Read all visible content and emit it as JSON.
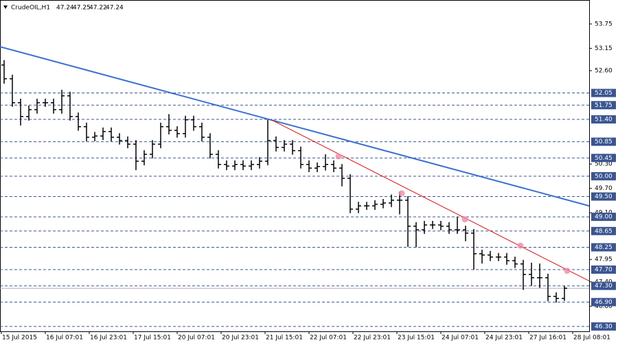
{
  "chart_data": {
    "type": "ohlc",
    "symbol": "CrudeOIL,H1",
    "quote": [
      "47.24",
      "47.25",
      "47.22",
      "47.24"
    ],
    "color": "#000000",
    "x": [
      1,
      4,
      7,
      10,
      13,
      16,
      19,
      22,
      25,
      28,
      31,
      34,
      37,
      40,
      43,
      46,
      49,
      52,
      55,
      58,
      61,
      64,
      67,
      70,
      73,
      76,
      79,
      82,
      85,
      88,
      91,
      94,
      97,
      100,
      103,
      106,
      109,
      112,
      115,
      118,
      121,
      124,
      127,
      130,
      133,
      136,
      139,
      142,
      145,
      148,
      151,
      154,
      157,
      160,
      163,
      166,
      169,
      172,
      175,
      178,
      181,
      184,
      187,
      190,
      193,
      196,
      199,
      202,
      205
    ],
    "open": [
      52.74,
      52.4,
      51.81,
      51.47,
      51.64,
      51.81,
      51.81,
      51.64,
      51.98,
      51.47,
      51.22,
      50.96,
      50.99,
      51.1,
      50.96,
      50.88,
      50.79,
      50.37,
      50.54,
      50.79,
      51.22,
      51.13,
      51.05,
      51.39,
      51.22,
      50.96,
      50.54,
      50.29,
      50.25,
      50.29,
      50.25,
      50.29,
      50.37,
      50.88,
      50.71,
      50.79,
      50.63,
      50.29,
      50.2,
      50.24,
      50.29,
      50.2,
      49.95,
      49.19,
      49.27,
      49.27,
      49.31,
      49.34,
      49.41,
      49.41,
      48.77,
      48.68,
      48.8,
      48.8,
      48.77,
      48.68,
      48.68,
      48.6,
      48.09,
      48.06,
      48.01,
      48.01,
      47.92,
      47.84,
      47.58,
      47.5,
      47.5,
      47.04,
      46.99
    ],
    "high": [
      52.86,
      52.5,
      51.91,
      51.74,
      51.91,
      51.91,
      51.91,
      52.13,
      52.08,
      51.57,
      51.32,
      51.09,
      51.2,
      51.2,
      51.06,
      50.98,
      50.89,
      50.64,
      50.89,
      51.32,
      51.53,
      51.23,
      51.49,
      51.49,
      51.32,
      51.06,
      50.64,
      50.39,
      50.39,
      50.39,
      50.39,
      50.47,
      51.39,
      50.98,
      50.89,
      50.89,
      50.73,
      50.39,
      50.34,
      50.54,
      50.39,
      50.3,
      50.05,
      49.37,
      49.37,
      49.41,
      49.44,
      49.55,
      49.62,
      49.51,
      48.87,
      48.9,
      48.9,
      48.9,
      48.87,
      49.0,
      48.78,
      48.7,
      48.19,
      48.16,
      48.11,
      48.11,
      48.02,
      47.94,
      47.87,
      47.85,
      47.6,
      47.14,
      47.3
    ],
    "low": [
      52.28,
      51.71,
      51.25,
      51.37,
      51.54,
      51.71,
      51.54,
      51.54,
      51.37,
      51.12,
      50.86,
      50.86,
      50.89,
      50.86,
      50.78,
      50.69,
      50.15,
      50.27,
      50.44,
      50.69,
      51.03,
      50.95,
      50.95,
      51.12,
      50.86,
      50.44,
      50.19,
      50.15,
      50.15,
      50.15,
      50.15,
      50.19,
      50.27,
      50.61,
      50.61,
      50.53,
      50.19,
      50.1,
      50.1,
      50.14,
      50.1,
      49.75,
      49.09,
      49.09,
      49.17,
      49.17,
      49.21,
      49.24,
      49.06,
      48.26,
      48.25,
      48.58,
      48.7,
      48.67,
      48.58,
      48.58,
      48.4,
      47.7,
      47.85,
      47.91,
      47.91,
      47.82,
      47.74,
      47.2,
      47.3,
      47.25,
      46.92,
      46.89,
      46.93
    ],
    "close": [
      52.4,
      51.81,
      51.47,
      51.64,
      51.81,
      51.81,
      51.64,
      51.98,
      51.47,
      51.22,
      50.96,
      50.99,
      51.1,
      50.96,
      50.88,
      50.79,
      50.37,
      50.54,
      50.79,
      51.22,
      51.13,
      51.05,
      51.39,
      51.22,
      50.96,
      50.54,
      50.29,
      50.25,
      50.29,
      50.25,
      50.29,
      50.37,
      50.88,
      50.71,
      50.79,
      50.63,
      50.29,
      50.2,
      50.24,
      50.29,
      50.2,
      49.95,
      49.19,
      49.27,
      49.27,
      49.31,
      49.34,
      49.41,
      49.41,
      48.77,
      48.68,
      48.8,
      48.8,
      48.77,
      48.68,
      48.68,
      48.6,
      48.09,
      48.06,
      48.01,
      48.01,
      47.92,
      47.84,
      47.58,
      47.5,
      47.5,
      47.04,
      46.99,
      47.24
    ],
    "xlim": [
      -0.5,
      214
    ],
    "ylim": [
      46.18,
      54.34
    ],
    "xticks": [
      {
        "value": 0,
        "label": "15 Jul 2015"
      },
      {
        "value": 16,
        "label": "16 Jul 07:01"
      },
      {
        "value": 32,
        "label": "16 Jul 23:01"
      },
      {
        "value": 48,
        "label": "17 Jul 15:01"
      },
      {
        "value": 64,
        "label": "20 Jul 07:01"
      },
      {
        "value": 80,
        "label": "20 Jul 23:01"
      },
      {
        "value": 96,
        "label": "21 Jul 15:01"
      },
      {
        "value": 112,
        "label": "22 Jul 07:01"
      },
      {
        "value": 128,
        "label": "22 Jul 23:01"
      },
      {
        "value": 144,
        "label": "23 Jul 15:01"
      },
      {
        "value": 160,
        "label": "24 Jul 07:01"
      },
      {
        "value": 176,
        "label": "24 Jul 23:01"
      },
      {
        "value": 192,
        "label": "27 Jul 16:01"
      },
      {
        "value": 208,
        "label": "28 Jul 08:01"
      }
    ],
    "yticks": [
      {
        "value": 53.75,
        "label": "53.75"
      },
      {
        "value": 53.15,
        "label": "53.15"
      },
      {
        "value": 52.6,
        "label": "52.60"
      },
      {
        "value": 50.3,
        "label": "50.30"
      },
      {
        "value": 49.7,
        "label": "49.70"
      },
      {
        "value": 49.1,
        "label": "49.10"
      },
      {
        "value": 47.95,
        "label": "47.95"
      },
      {
        "value": 47.4,
        "label": "47.40"
      },
      {
        "value": 46.8,
        "label": "46.80"
      }
    ],
    "levels": [
      {
        "value": 52.05,
        "label": "52.05"
      },
      {
        "value": 51.75,
        "label": "51.75"
      },
      {
        "value": 51.4,
        "label": "51.40"
      },
      {
        "value": 50.85,
        "label": "50.85"
      },
      {
        "value": 50.45,
        "label": "50.45"
      },
      {
        "value": 50,
        "label": "50.00"
      },
      {
        "value": 49.5,
        "label": "49.50"
      },
      {
        "value": 49,
        "label": "49.00"
      },
      {
        "value": 48.65,
        "label": "48.65"
      },
      {
        "value": 48.25,
        "label": "48.25"
      },
      {
        "value": 47.7,
        "label": "47.70"
      },
      {
        "value": 47.3,
        "label": "47.30"
      },
      {
        "value": 46.9,
        "label": "46.90"
      },
      {
        "value": 46.3,
        "label": "46.30"
      }
    ],
    "level_color": "#3a5590",
    "current_price": 47.24,
    "trendlines": [
      {
        "color": "#3a6fd0",
        "x": [
          -0.5,
          214
        ],
        "y": [
          53.19,
          49.27
        ]
      },
      {
        "color": "#d01010",
        "x": [
          98.25,
          214
        ],
        "y": [
          51.39,
          47.42
        ]
      }
    ],
    "markers": {
      "color": "#f08aa8",
      "x": [
        122.75,
        145.75,
        168.75,
        189,
        206
      ],
      "y": [
        50.49,
        49.58,
        48.94,
        48.29,
        47.67
      ]
    }
  }
}
